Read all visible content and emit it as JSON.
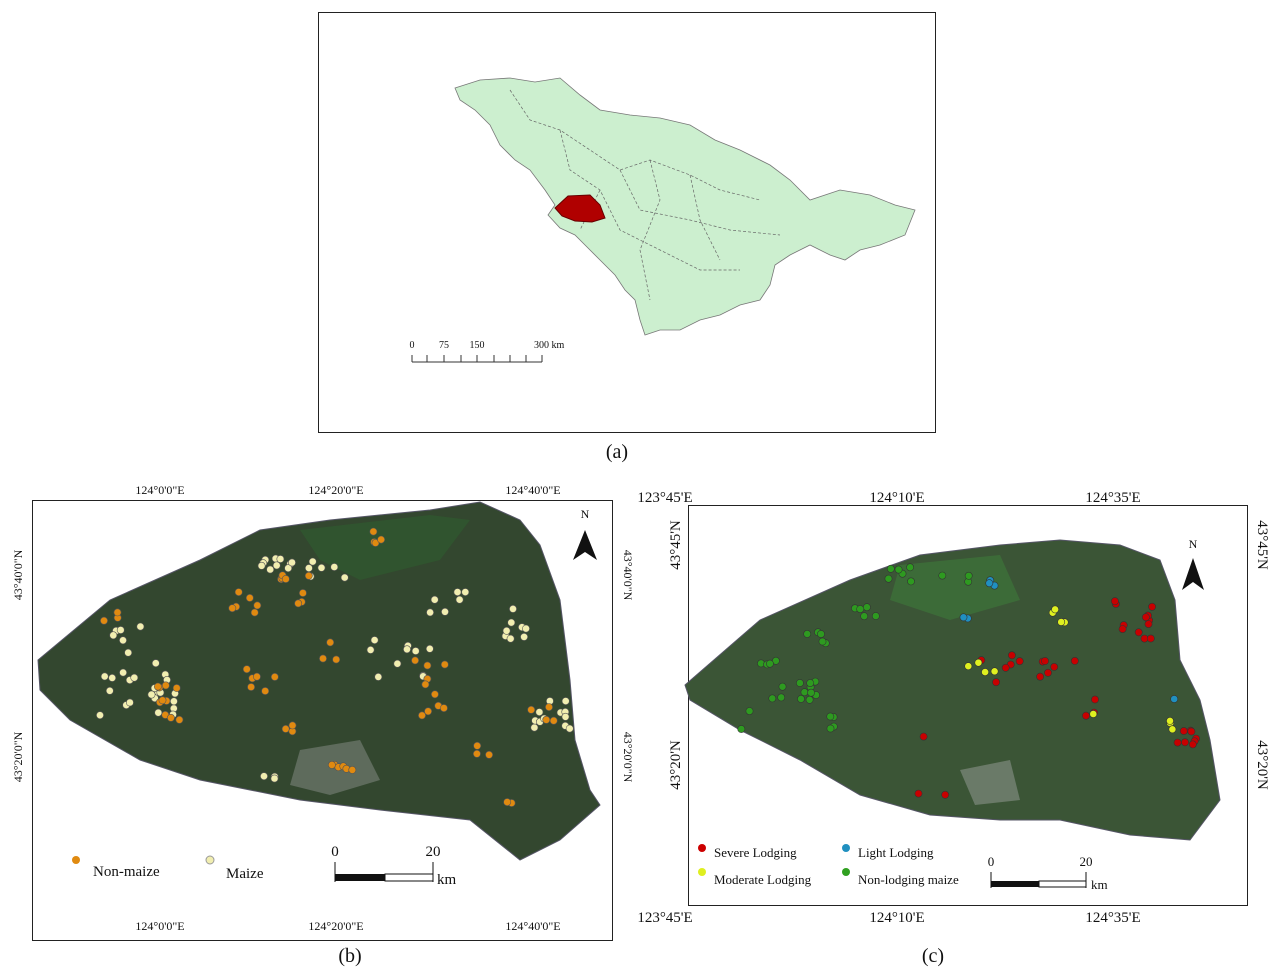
{
  "panel_a": {
    "caption": "(a)",
    "scale_labels": [
      "0",
      "75",
      "150",
      "300 km"
    ]
  },
  "panel_b": {
    "caption": "(b)",
    "top_labels": [
      "124°0'0\"E",
      "124°20'0\"E",
      "124°40'0\"E"
    ],
    "bottom_labels": [
      "124°0'0\"E",
      "124°20'0\"E",
      "124°40'0\"E"
    ],
    "left_labels": [
      "43°40'0\"N",
      "43°20'0\"N"
    ],
    "right_labels": [
      "43°40'0\"N",
      "43°20'0\"N"
    ],
    "north": "N",
    "legend": [
      "Non-maize",
      "Maize"
    ],
    "scale_labels": [
      "0",
      "20"
    ],
    "scale_unit": "km"
  },
  "panel_c": {
    "caption": "(c)",
    "top_labels": [
      "123°45'E",
      "124°10'E",
      "124°35'E"
    ],
    "bottom_labels": [
      "123°45'E",
      "124°10'E",
      "124°35'E"
    ],
    "left_labels": [
      "43°45'N",
      "43°20'N"
    ],
    "right_labels": [
      "43°45'N",
      "43°20'N"
    ],
    "north": "N",
    "legend": [
      "Severe Lodging",
      "Light Lodging",
      "Moderate Lodging",
      "Non-lodging maize"
    ],
    "scale_labels": [
      "0",
      "20"
    ],
    "scale_unit": "km"
  }
}
